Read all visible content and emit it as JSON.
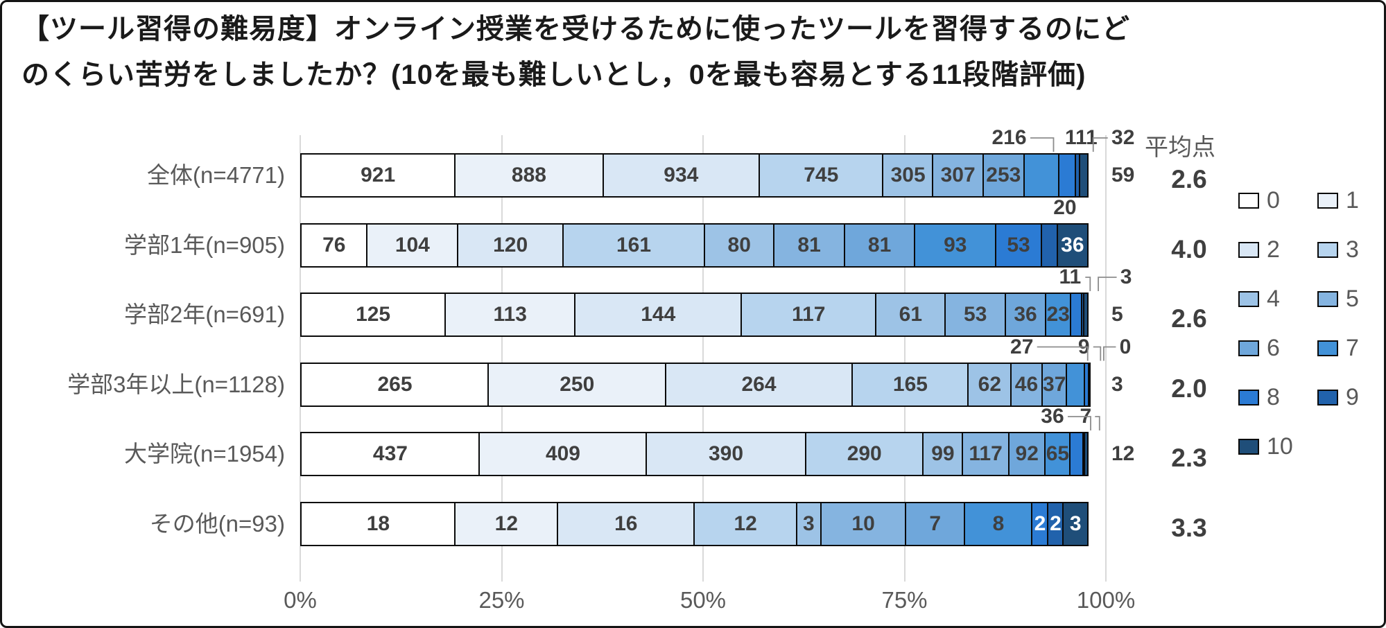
{
  "colors": {
    "frame_border": "#141414",
    "grid": "#D9D9D9",
    "bar_border": "#0a0a0a",
    "label_dark": "#3f3f3f",
    "label_muted": "#595959",
    "leader": "#8c8c8c",
    "white_label": "#ffffff"
  },
  "chart_data": {
    "type": "bar",
    "subtype": "stacked-horizontal-100pct",
    "title_lines": [
      "【ツール習得の難易度】オンライン授業を受けるために使ったツールを習得するのにど",
      "のくらい苦労をしましたか？(10を最も難しいとし，0を最も容易とする11段階評価)"
    ],
    "avg_header": "平均点",
    "x_ticks": [
      "0%",
      "25%",
      "50%",
      "75%",
      "100%"
    ],
    "legend": {
      "labels": [
        "0",
        "1",
        "2",
        "3",
        "4",
        "5",
        "6",
        "7",
        "8",
        "9",
        "10"
      ],
      "colors": [
        "#FFFFFF",
        "#EAF1F9",
        "#D9E7F5",
        "#B7D4EE",
        "#9DC3E6",
        "#85B4E0",
        "#6FA7DB",
        "#4292D8",
        "#2B7BD4",
        "#2162AC",
        "#1F4E79"
      ],
      "position": "right"
    },
    "rows": [
      {
        "label": "全体(n=4771)",
        "avg": "2.6",
        "values": [
          921,
          888,
          934,
          745,
          305,
          307,
          253,
          216,
          111,
          32,
          59
        ],
        "annotations": [
          {
            "i": 7,
            "pos": "above",
            "dx": -64,
            "leader": true
          },
          {
            "i": 8,
            "pos": "above",
            "dx": 0,
            "leader": false
          },
          {
            "i": 9,
            "pos": "above",
            "dx": 43,
            "leader": true
          },
          {
            "i": 10,
            "pos": "right"
          }
        ],
        "inside_white": []
      },
      {
        "label": "学部1年(n=905)",
        "avg": "4.0",
        "values": [
          76,
          104,
          120,
          161,
          80,
          81,
          81,
          93,
          53,
          20,
          36
        ],
        "annotations": [
          {
            "i": 9,
            "pos": "above",
            "dx": 0,
            "leader": false
          }
        ],
        "inside_white": [
          10
        ]
      },
      {
        "label": "学部2年(n=691)",
        "avg": "2.6",
        "values": [
          125,
          113,
          144,
          117,
          61,
          53,
          36,
          23,
          11,
          3,
          5
        ],
        "annotations": [
          {
            "i": 8,
            "pos": "above",
            "dx": -29,
            "leader": true
          },
          {
            "i": 9,
            "pos": "above",
            "dx": 40,
            "leader": true
          },
          {
            "i": 10,
            "pos": "right"
          }
        ],
        "inside_white": []
      },
      {
        "label": "学部3年以上(n=1128)",
        "avg": "2.0",
        "values": [
          265,
          250,
          264,
          165,
          62,
          46,
          37,
          27,
          9,
          0,
          3
        ],
        "annotations": [
          {
            "i": 7,
            "pos": "above",
            "dx": -95,
            "leader": true
          },
          {
            "i": 8,
            "pos": "above",
            "dx": -24,
            "leader": true
          },
          {
            "i": 9,
            "pos": "above",
            "dx": 31,
            "leader": true
          },
          {
            "i": 10,
            "pos": "right"
          }
        ],
        "inside_white": []
      },
      {
        "label": "大学院(n=1954)",
        "avg": "2.3",
        "values": [
          437,
          409,
          390,
          290,
          99,
          117,
          92,
          65,
          36,
          7,
          12
        ],
        "annotations": [
          {
            "i": 8,
            "pos": "above",
            "dx": -55,
            "leader": true
          },
          {
            "i": 9,
            "pos": "above",
            "dx": -20,
            "leader": true
          },
          {
            "i": 10,
            "pos": "right"
          }
        ],
        "inside_white": []
      },
      {
        "label": "その他(n=93)",
        "avg": "3.3",
        "values": [
          18,
          12,
          16,
          12,
          3,
          10,
          7,
          8,
          2,
          2,
          3
        ],
        "annotations": [],
        "inside_white": [
          8,
          9,
          10
        ]
      }
    ]
  }
}
